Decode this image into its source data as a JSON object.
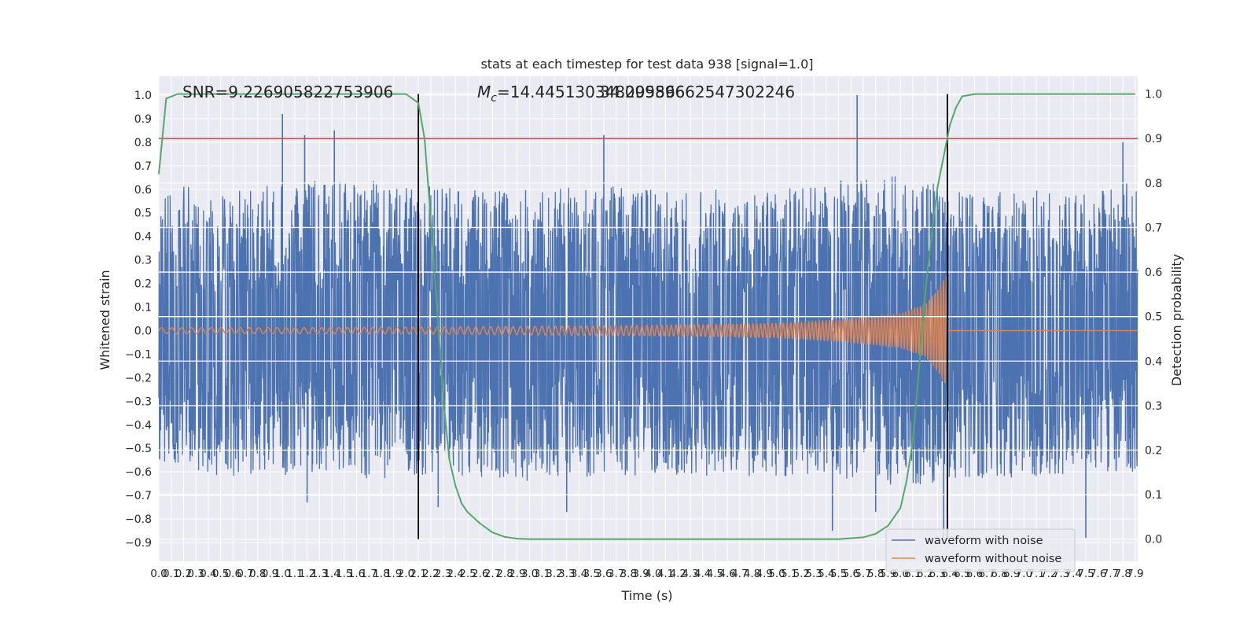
{
  "chart_data": {
    "type": "line",
    "title": "stats at each timestep for test data 938 [signal=1.0]",
    "xlabel": "Time (s)",
    "ylabel": "Whitened strain",
    "y2label": "Detection probability",
    "xlim": [
      0.0,
      7.92
    ],
    "ylim": [
      -0.98,
      1.08
    ],
    "y2lim": [
      -0.05,
      1.04
    ],
    "x_ticks": [
      0.0,
      0.1,
      0.2,
      0.3,
      0.4,
      0.5,
      0.6,
      0.7,
      0.8,
      0.9,
      1.0,
      1.1,
      1.2,
      1.3,
      1.4,
      1.5,
      1.6,
      1.7,
      1.8,
      1.9,
      2.0,
      2.1,
      2.2,
      2.3,
      2.4,
      2.5,
      2.6,
      2.7,
      2.8,
      2.9,
      3.0,
      3.1,
      3.2,
      3.3,
      3.4,
      3.5,
      3.6,
      3.7,
      3.8,
      3.9,
      4.0,
      4.1,
      4.2,
      4.3,
      4.4,
      4.5,
      4.6,
      4.7,
      4.8,
      4.9,
      5.0,
      5.1,
      5.2,
      5.3,
      5.4,
      5.5,
      5.6,
      5.7,
      5.8,
      5.9,
      6.0,
      6.1,
      6.2,
      6.3,
      6.4,
      6.5,
      6.6,
      6.7,
      6.8,
      6.9,
      7.0,
      7.1,
      7.2,
      7.3,
      7.4,
      7.5,
      7.6,
      7.7,
      7.8,
      7.9
    ],
    "x_tick_labels": [
      "0.0",
      "0.1",
      "0.2",
      "0.3",
      "0.4",
      "0.5",
      "0.6",
      "0.7",
      "0.8",
      "0.9",
      "1.0",
      "1.1",
      "1.2",
      "1.3",
      "1.4",
      "1.5",
      "1.6",
      "1.7",
      "1.8",
      "1.9",
      "2.0",
      "2.1",
      "2.2",
      "2.3",
      "2.4",
      "2.5",
      "2.6",
      "2.7",
      "2.8",
      "2.9",
      "3.0",
      "3.1",
      "3.2",
      "3.3",
      "3.4",
      "3.5",
      "3.6",
      "3.7",
      "3.8",
      "3.9",
      "4.0",
      "4.1",
      "4.2",
      "4.3",
      "4.4",
      "4.5",
      "4.6",
      "4.7",
      "4.8",
      "4.9",
      "5.0",
      "5.1",
      "5.2",
      "5.3",
      "5.4",
      "5.5",
      "5.6",
      "5.7",
      "5.8",
      "5.9",
      "6.0",
      "6.1",
      "6.2",
      "6.3",
      "6.4",
      "6.5",
      "6.6",
      "6.7",
      "6.8",
      "6.9",
      "7.0",
      "7.1",
      "7.2",
      "7.3",
      "7.4",
      "7.5",
      "7.6",
      "7.7",
      "7.8",
      "7.9"
    ],
    "y_ticks": [
      -0.9,
      -0.8,
      -0.7,
      -0.6,
      -0.5,
      -0.4,
      -0.3,
      -0.2,
      -0.1,
      0.0,
      0.1,
      0.2,
      0.3,
      0.4,
      0.5,
      0.6,
      0.7,
      0.8,
      0.9,
      1.0
    ],
    "y_tick_labels": [
      "−0.9",
      "−0.8",
      "−0.7",
      "−0.6",
      "−0.5",
      "−0.4",
      "−0.3",
      "−0.2",
      "−0.1",
      "0.0",
      "0.1",
      "0.2",
      "0.3",
      "0.4",
      "0.5",
      "0.6",
      "0.7",
      "0.8",
      "0.9",
      "1.0"
    ],
    "y2_ticks": [
      0.0,
      0.1,
      0.2,
      0.3,
      0.4,
      0.5,
      0.6,
      0.7,
      0.8,
      0.9,
      1.0
    ],
    "y2_tick_labels": [
      "0.0",
      "0.1",
      "0.2",
      "0.3",
      "0.4",
      "0.5",
      "0.6",
      "0.7",
      "0.8",
      "0.9",
      "1.0"
    ],
    "annotations": {
      "snr": "SNR=9.226905822753906",
      "mc_symbol": "M",
      "mc_subscript": "c",
      "mc_value": "=14.445130348205566",
      "mc_overlap": "34.09989662547302246"
    },
    "threshold_line": {
      "axis": "y2",
      "value": 0.9,
      "color": "#c44e52"
    },
    "vertical_lines": [
      2.1,
      6.38
    ],
    "series": [
      {
        "name": "waveform with noise",
        "axis": "y",
        "color": "#4c72b0",
        "envelope": {
          "x": [
            0.0,
            0.5,
            1.0,
            1.5,
            2.0,
            2.5,
            3.0,
            3.5,
            4.0,
            4.5,
            5.0,
            5.5,
            6.0,
            6.5,
            7.0,
            7.5,
            7.92
          ],
          "upper": [
            0.62,
            0.6,
            0.62,
            0.65,
            0.62,
            0.6,
            0.6,
            0.62,
            0.6,
            0.6,
            0.6,
            0.64,
            0.66,
            0.6,
            0.6,
            0.6,
            0.64
          ],
          "lower": [
            -0.55,
            -0.62,
            -0.62,
            -0.64,
            -0.62,
            -0.62,
            -0.64,
            -0.62,
            -0.62,
            -0.62,
            -0.62,
            -0.64,
            -0.66,
            -0.64,
            -0.62,
            -0.62,
            -0.6
          ]
        },
        "peaks": [
          {
            "x": 1.0,
            "y": 0.92
          },
          {
            "x": 1.18,
            "y": 0.83
          },
          {
            "x": 1.42,
            "y": 0.85
          },
          {
            "x": 3.6,
            "y": 0.83
          },
          {
            "x": 5.65,
            "y": 1.0
          },
          {
            "x": 7.8,
            "y": 0.8
          },
          {
            "x": 1.2,
            "y": -0.73
          },
          {
            "x": 2.26,
            "y": -0.75
          },
          {
            "x": 3.3,
            "y": -0.77
          },
          {
            "x": 5.45,
            "y": -0.85
          },
          {
            "x": 5.8,
            "y": -0.77
          },
          {
            "x": 6.35,
            "y": -0.88
          },
          {
            "x": 7.5,
            "y": -0.88
          }
        ]
      },
      {
        "name": "waveform without noise",
        "axis": "y",
        "color": "#dd8452",
        "merger_time": 6.38,
        "amplitude": {
          "x": [
            0.0,
            2.0,
            4.0,
            5.0,
            5.5,
            6.0,
            6.2,
            6.3,
            6.38
          ],
          "y": [
            0.012,
            0.014,
            0.022,
            0.03,
            0.045,
            0.07,
            0.11,
            0.17,
            0.24
          ]
        },
        "frequency_hz": {
          "x": [
            0.0,
            3.0,
            6.38
          ],
          "y": [
            12,
            17,
            44
          ]
        },
        "post_merger_value": 0.0
      },
      {
        "name": "detection probability",
        "axis": "y2",
        "color": "#55a868",
        "x": [
          0.0,
          0.06,
          0.15,
          0.3,
          1.0,
          1.5,
          2.0,
          2.05,
          2.1,
          2.15,
          2.2,
          2.25,
          2.3,
          2.35,
          2.4,
          2.45,
          2.5,
          2.6,
          2.7,
          2.8,
          2.9,
          3.0,
          4.0,
          5.0,
          5.5,
          5.7,
          5.8,
          5.9,
          6.0,
          6.05,
          6.1,
          6.15,
          6.2,
          6.25,
          6.3,
          6.35,
          6.4,
          6.45,
          6.5,
          6.6,
          6.7,
          7.0,
          7.5,
          7.9
        ],
        "y": [
          0.82,
          0.99,
          1.0,
          1.0,
          1.0,
          1.0,
          1.0,
          0.99,
          0.98,
          0.9,
          0.72,
          0.52,
          0.32,
          0.18,
          0.12,
          0.08,
          0.06,
          0.035,
          0.015,
          0.005,
          0.001,
          0.0,
          0.0,
          0.0,
          0.0,
          0.004,
          0.012,
          0.03,
          0.07,
          0.13,
          0.22,
          0.38,
          0.55,
          0.68,
          0.79,
          0.86,
          0.93,
          0.97,
          0.995,
          1.0,
          1.0,
          1.0,
          1.0,
          1.0
        ]
      }
    ],
    "legend": {
      "placement": "lower-right",
      "entries": [
        "waveform with noise",
        "waveform without noise"
      ]
    },
    "grid": true
  }
}
